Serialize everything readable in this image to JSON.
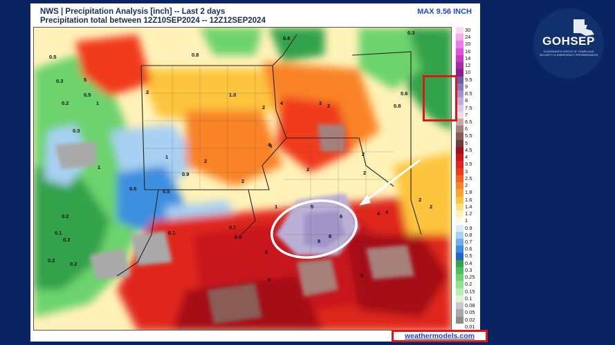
{
  "header": {
    "title": "NWS | Precipitation Analysis [inch] -- Last 2 days",
    "subtitle": "Precipitation total between 12Z10SEP2024 -- 12Z12SEP2024",
    "max_label": "MAX 9.56 INCH"
  },
  "footer": {
    "source": "weathermodels.com"
  },
  "logo": {
    "name": "GOHSEP",
    "tagline": "GOVERNOR'S OFFICE OF HOMELAND SECURITY & EMERGENCY PREPAREDNESS"
  },
  "legend": {
    "levels": [
      "30",
      "24",
      "20",
      "16",
      "14",
      "12",
      "10",
      "9.5",
      "9",
      "8.5",
      "8",
      "7.5",
      "7",
      "6.5",
      "6",
      "5.5",
      "5",
      "4.5",
      "4",
      "3.5",
      "3",
      "2.5",
      "2",
      "1.8",
      "1.6",
      "1.4",
      "1.2",
      "1",
      "0.9",
      "0.8",
      "0.7",
      "0.6",
      "0.5",
      "0.4",
      "0.3",
      "0.25",
      "0.2",
      "0.15",
      "0.1",
      "0.08",
      "0.05",
      "0.02",
      "0.01"
    ],
    "colors": [
      "#fdd9f5",
      "#f7aaf0",
      "#f07be8",
      "#e450d8",
      "#c93bbf",
      "#a82aa6",
      "#8a208f",
      "#6b5fa8",
      "#8578b8",
      "#a094c8",
      "#bab0d6",
      "#d5cce4",
      "#e9dde4",
      "#c9a9a3",
      "#a6807a",
      "#8a5c55",
      "#6e3f3a",
      "#a50f15",
      "#c7161b",
      "#e0261c",
      "#f03a1e",
      "#f55f20",
      "#f98325",
      "#fba42e",
      "#fdc43d",
      "#fde07a",
      "#fff2b8",
      "#fffbe8",
      "#d7ecf8",
      "#a7d0f2",
      "#6fb0ec",
      "#3c8fe0",
      "#2466c8",
      "#33a24c",
      "#4cbf5a",
      "#6dd36d",
      "#93e08f",
      "#b8ebb5",
      "#d9f5d4",
      "#c9c9c9",
      "#a9a9a9",
      "#8c8c8c",
      "#ffffff"
    ]
  },
  "map_annotations": {
    "values": [
      "0.5",
      "0.5",
      "0.3",
      "0.2",
      "0.3",
      "0.2",
      "0.1",
      "0.3",
      "0.2",
      "0.2",
      "0.6",
      "0.8",
      "0.3",
      "0.6",
      "0.8",
      "1.0",
      "1",
      "2",
      "2",
      "3",
      "2",
      "4",
      "4",
      "2",
      "1",
      "1",
      "0.9",
      "2",
      "2",
      "4",
      "2",
      "0.6",
      "0.5",
      "0.1",
      "0.7",
      "0.6",
      "5",
      "5",
      "5",
      "8",
      "8",
      "6",
      "4",
      "4",
      "2",
      "2",
      "5",
      "1",
      "2",
      "5"
    ],
    "callout": "Max rainfall area circled"
  }
}
